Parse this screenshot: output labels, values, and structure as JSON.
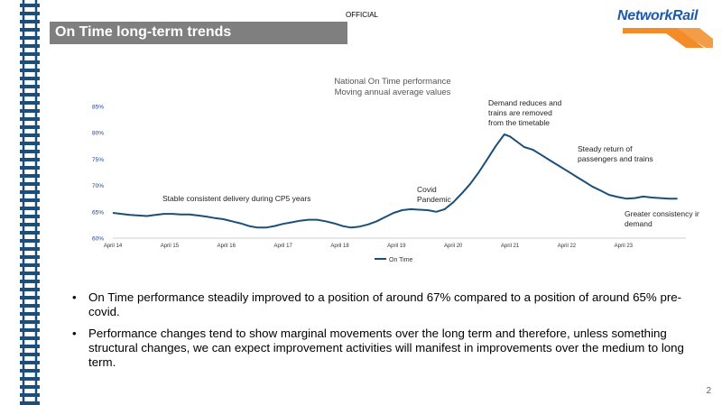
{
  "header": {
    "classification": "OFFICIAL",
    "title": "On Time long-term trends",
    "logo_text": "NetworkRail"
  },
  "colors": {
    "title_bar": "#7f7f7f",
    "line": "#1b4f7a",
    "axis_text": "#1f3f8a",
    "track": "#1b4f7a",
    "logo_blue": "#1d5aa8",
    "logo_orange": "#f28c28"
  },
  "chart_data": {
    "type": "line",
    "title": "National On Time performance",
    "subtitle": "Moving annual average values",
    "x_tick_labels": [
      "April 14",
      "April 15",
      "April 16",
      "April 17",
      "April 18",
      "April 19",
      "April 20",
      "April 21",
      "April 22",
      "April 23"
    ],
    "y_tick_labels": [
      "60%",
      "65%",
      "70%",
      "75%",
      "80%",
      "85%"
    ],
    "ylim": [
      60,
      85
    ],
    "grid": false,
    "legend": "bottom",
    "series": [
      {
        "name": "On Time",
        "x": [
          2014.25,
          2014.4,
          2014.55,
          2014.7,
          2014.85,
          2015.0,
          2015.15,
          2015.3,
          2015.45,
          2015.6,
          2015.75,
          2015.9,
          2016.05,
          2016.2,
          2016.35,
          2016.5,
          2016.65,
          2016.8,
          2016.95,
          2017.1,
          2017.25,
          2017.4,
          2017.55,
          2017.7,
          2017.85,
          2018.0,
          2018.15,
          2018.3,
          2018.45,
          2018.6,
          2018.75,
          2018.9,
          2019.05,
          2019.2,
          2019.35,
          2019.5,
          2019.65,
          2019.8,
          2019.95,
          2020.1,
          2020.25,
          2020.4,
          2020.55,
          2020.7,
          2020.85,
          2021.0,
          2021.15,
          2021.25,
          2021.35,
          2021.5,
          2021.65,
          2021.8,
          2021.95,
          2022.1,
          2022.25,
          2022.4,
          2022.55,
          2022.7,
          2022.85,
          2023.0,
          2023.15,
          2023.3,
          2023.45,
          2023.6,
          2023.75,
          2023.9,
          2024.05,
          2024.2
        ],
        "values": [
          64.8,
          64.6,
          64.4,
          64.3,
          64.2,
          64.4,
          64.6,
          64.6,
          64.5,
          64.5,
          64.3,
          64.1,
          63.8,
          63.6,
          63.2,
          62.8,
          62.3,
          62.0,
          62.0,
          62.3,
          62.7,
          63.0,
          63.3,
          63.5,
          63.5,
          63.2,
          62.8,
          62.3,
          62.0,
          62.2,
          62.6,
          63.2,
          64.0,
          64.8,
          65.3,
          65.5,
          65.4,
          65.3,
          65.0,
          65.5,
          66.8,
          68.5,
          70.3,
          72.5,
          75.0,
          77.5,
          79.7,
          79.3,
          78.5,
          77.3,
          76.8,
          75.8,
          74.8,
          73.8,
          72.8,
          71.8,
          70.8,
          69.8,
          69.0,
          68.2,
          67.8,
          67.5,
          67.6,
          67.9,
          67.7,
          67.6,
          67.5,
          67.5
        ]
      }
    ],
    "annotations": [
      {
        "text": "Stable consistent delivery during CP5 years"
      },
      {
        "text": "Covid Pandemic"
      },
      {
        "text": "Demand reduces and trains are removed from the timetable"
      },
      {
        "text": "Steady return of passengers and trains"
      },
      {
        "text": "Greater consistency in demand"
      }
    ]
  },
  "bullets": [
    {
      "symbol": "•",
      "text": "On Time performance steadily improved to a position of around 67% compared to a position of around 65% pre-covid."
    },
    {
      "symbol": "•",
      "text": "Performance changes tend to show marginal movements over the long term and therefore, unless something structural changes, we can expect improvement activities will manifest in improvements over the medium to long term."
    }
  ],
  "page_number": "2"
}
